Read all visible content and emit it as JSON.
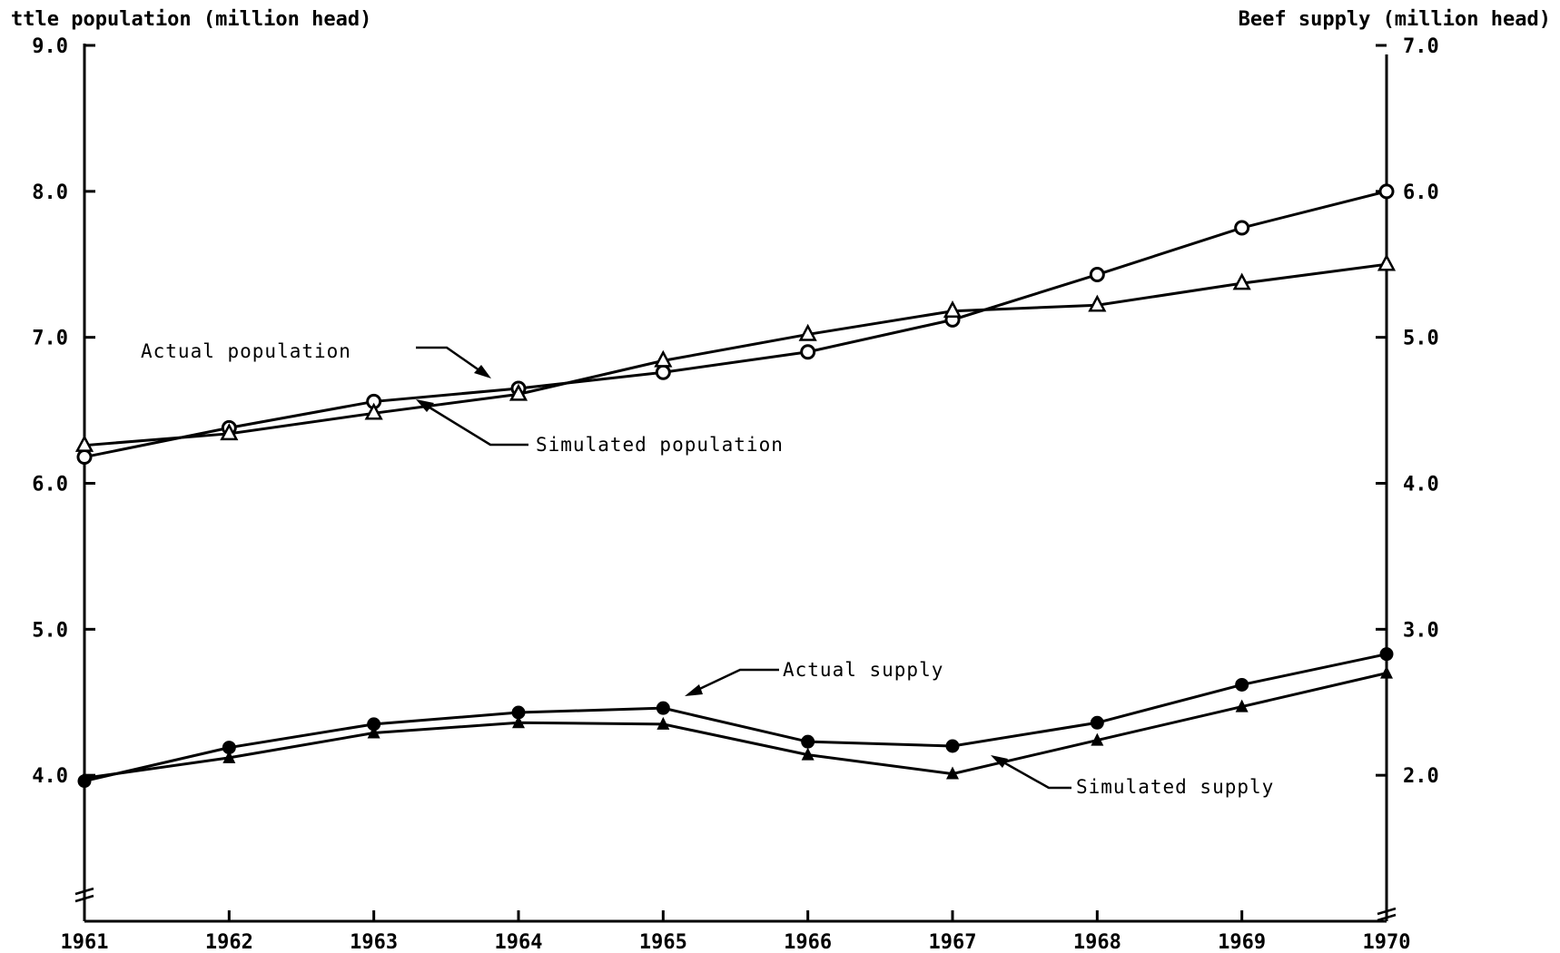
{
  "chart_data": {
    "type": "line",
    "left_axis_title": "ttle population (million head)",
    "right_axis_title": "Beef supply (million head)",
    "x": [
      1961,
      1962,
      1963,
      1964,
      1965,
      1966,
      1967,
      1968,
      1969,
      1970
    ],
    "x_tick_labels": [
      "1961",
      "1962",
      "1963",
      "1964",
      "1965",
      "1966",
      "1967",
      "1968",
      "1969",
      "1970"
    ],
    "left_ylim": [
      3.0,
      9.0
    ],
    "left_ticks": [
      4.0,
      5.0,
      6.0,
      7.0,
      8.0,
      9.0
    ],
    "left_tick_labels": [
      "4.0",
      "5.0",
      "6.0",
      "7.0",
      "8.0",
      "9.0"
    ],
    "right_ylim": [
      1.0,
      7.0
    ],
    "right_ticks": [
      2.0,
      3.0,
      4.0,
      5.0,
      6.0,
      7.0
    ],
    "right_tick_labels": [
      "2.0",
      "3.0",
      "4.0",
      "5.0",
      "6.0",
      "7.0"
    ],
    "grid": false,
    "series": [
      {
        "name": "Actual population",
        "axis": "left",
        "marker": "circle-open",
        "values": [
          6.18,
          6.38,
          6.56,
          6.65,
          6.76,
          6.9,
          7.12,
          7.43,
          7.75,
          8.0
        ]
      },
      {
        "name": "Simulated population",
        "axis": "left",
        "marker": "triangle-open",
        "values": [
          6.26,
          6.34,
          6.48,
          6.61,
          6.84,
          7.02,
          7.18,
          7.22,
          7.37,
          7.5
        ]
      },
      {
        "name": "Actual supply",
        "axis": "right",
        "marker": "circle-filled",
        "values": [
          1.96,
          2.19,
          2.35,
          2.43,
          2.46,
          2.23,
          2.2,
          2.36,
          2.62,
          2.83
        ]
      },
      {
        "name": "Simulated supply",
        "axis": "right",
        "marker": "triangle-filled",
        "values": [
          1.98,
          2.12,
          2.29,
          2.36,
          2.35,
          2.14,
          2.01,
          2.24,
          2.47,
          2.7
        ]
      }
    ]
  }
}
